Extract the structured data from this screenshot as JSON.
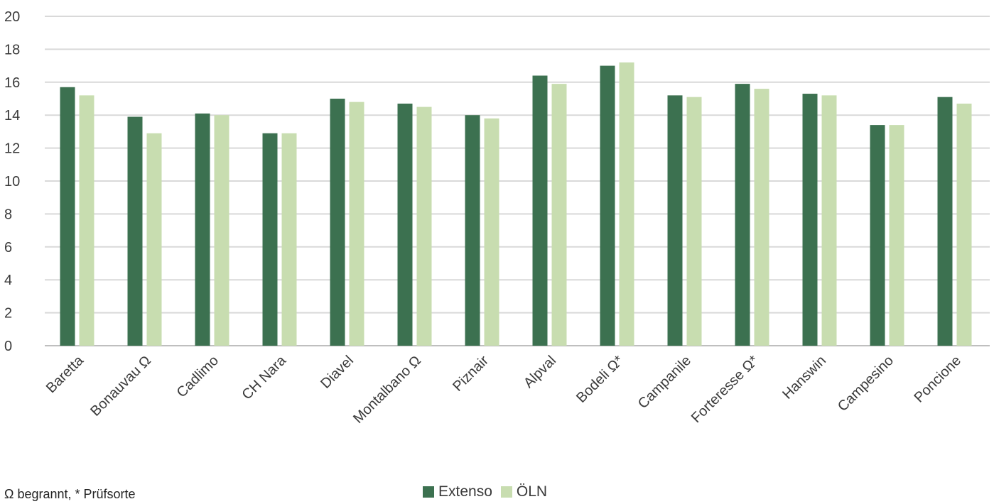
{
  "chart_data": {
    "type": "bar",
    "categories": [
      "Baretta",
      "Bonauvau Ω",
      "Cadlimo",
      "CH Nara",
      "Diavel",
      "Montalbano Ω",
      "Piznair",
      "Alpval",
      "Bodeli Ω*",
      "Campanile",
      "Forteresse Ω*",
      "Hanswin",
      "Campesino",
      "Poncione"
    ],
    "series": [
      {
        "name": "Extenso",
        "color": "#3c7150",
        "values": [
          15.7,
          13.9,
          14.1,
          12.9,
          15.0,
          14.7,
          14.0,
          16.4,
          17.0,
          15.2,
          15.9,
          15.3,
          13.4,
          15.1
        ]
      },
      {
        "name": "ÖLN",
        "color": "#c8ddb0",
        "values": [
          15.2,
          12.9,
          14.0,
          12.9,
          14.8,
          14.5,
          13.8,
          15.9,
          17.2,
          15.1,
          15.6,
          15.2,
          13.4,
          14.7
        ]
      }
    ],
    "yticks": [
      0,
      2,
      4,
      6,
      8,
      10,
      12,
      14,
      16,
      18,
      20
    ],
    "ylim": [
      0,
      20
    ],
    "grid": true,
    "legend_position": "bottom"
  },
  "footnote": "Ω begrannt, * Prüfsorte"
}
